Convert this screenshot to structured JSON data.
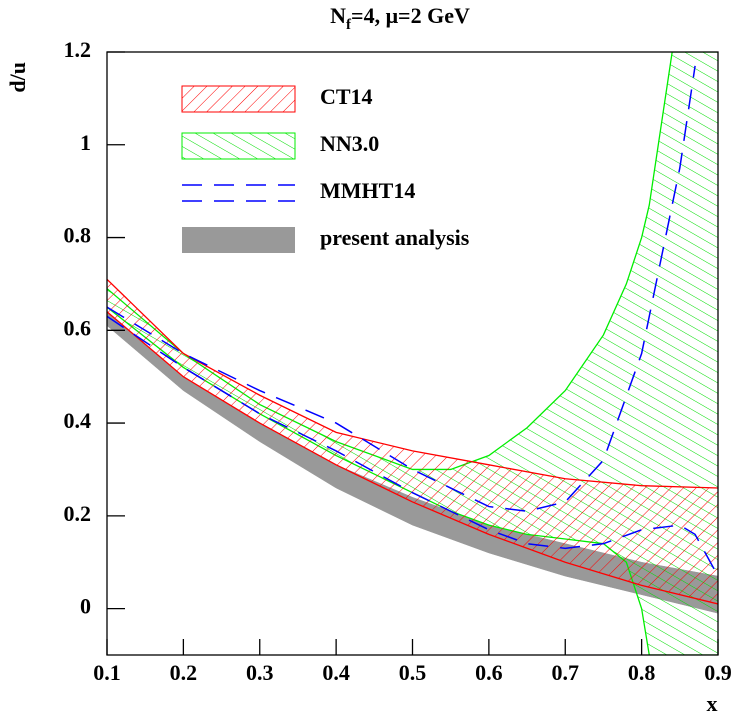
{
  "chart_data": {
    "type": "band",
    "title": [
      "N",
      "f",
      "=4, μ=2 GeV"
    ],
    "x_label": "x",
    "y_label": "d/u",
    "xlim": [
      0.1,
      0.9
    ],
    "ylim": [
      -0.1,
      1.2
    ],
    "xticks": [
      0.1,
      0.2,
      0.3,
      0.4,
      0.5,
      0.6,
      0.7,
      0.8,
      0.9
    ],
    "yticks": [
      0,
      0.2,
      0.4,
      0.6,
      0.8,
      1,
      1.2
    ],
    "series": [
      {
        "name": "CT14",
        "color": "#ff0000",
        "style": "hatch-up",
        "x": [
          0.1,
          0.2,
          0.3,
          0.4,
          0.5,
          0.6,
          0.7,
          0.8,
          0.9
        ],
        "upper": [
          0.71,
          0.55,
          0.46,
          0.38,
          0.34,
          0.31,
          0.28,
          0.265,
          0.26
        ],
        "lower": [
          0.64,
          0.5,
          0.4,
          0.31,
          0.23,
          0.16,
          0.1,
          0.05,
          0.01
        ]
      },
      {
        "name": "NN3.0",
        "color": "#00ee00",
        "style": "hatch-down",
        "x": [
          0.1,
          0.2,
          0.3,
          0.4,
          0.5,
          0.55,
          0.6,
          0.65,
          0.7,
          0.75,
          0.78,
          0.8,
          0.81,
          0.84,
          0.9
        ],
        "upper": [
          0.69,
          0.55,
          0.44,
          0.36,
          0.3,
          0.3,
          0.33,
          0.39,
          0.47,
          0.59,
          0.7,
          0.8,
          0.87,
          1.2,
          1.2
        ],
        "lower": [
          0.65,
          0.52,
          0.42,
          0.33,
          0.25,
          0.21,
          0.18,
          0.16,
          0.15,
          0.14,
          0.1,
          0.0,
          -0.1,
          -0.1,
          -0.1
        ]
      },
      {
        "name": "MMHT14",
        "color": "#0000ff",
        "style": "dashed",
        "x": [
          0.1,
          0.2,
          0.3,
          0.4,
          0.5,
          0.6,
          0.65,
          0.7,
          0.75,
          0.8,
          0.85,
          0.87,
          0.9
        ],
        "upper": [
          0.65,
          0.55,
          0.47,
          0.4,
          0.3,
          0.22,
          0.21,
          0.23,
          0.32,
          0.55,
          0.95,
          1.17,
          null
        ],
        "lower": [
          0.63,
          0.52,
          0.42,
          0.34,
          0.25,
          0.17,
          0.14,
          0.13,
          0.14,
          0.17,
          0.18,
          0.16,
          0.07
        ]
      },
      {
        "name": "present analysis",
        "color": "#999999",
        "style": "fill",
        "x": [
          0.1,
          0.2,
          0.3,
          0.4,
          0.5,
          0.6,
          0.7,
          0.8,
          0.9
        ],
        "upper": [
          0.64,
          0.5,
          0.4,
          0.31,
          0.24,
          0.18,
          0.14,
          0.1,
          0.07
        ],
        "lower": [
          0.61,
          0.47,
          0.36,
          0.26,
          0.18,
          0.12,
          0.07,
          0.03,
          -0.01
        ]
      }
    ]
  }
}
